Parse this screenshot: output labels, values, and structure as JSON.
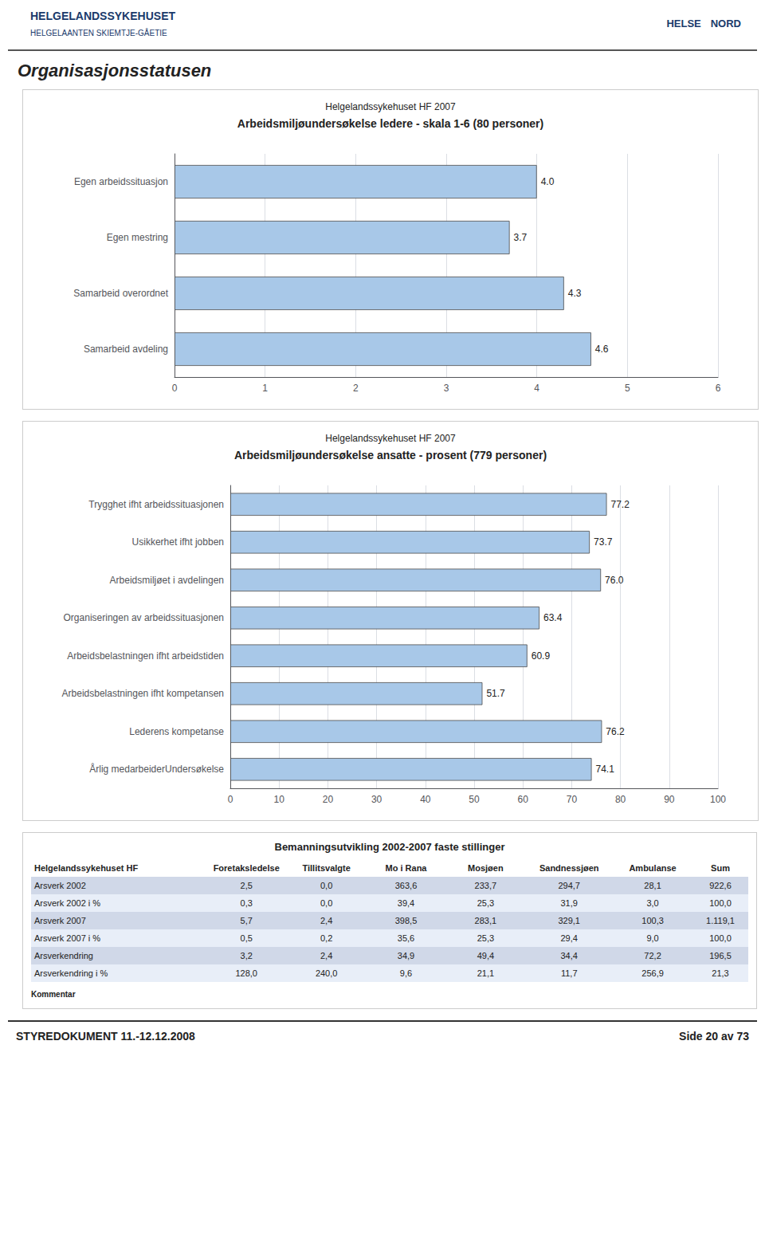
{
  "page": {
    "header_left": [
      "HELGELANDSSYKEHUSET",
      "HELGELAANTEN SKIEMTJE-GÅETIE"
    ],
    "header_right": [
      "HELSE",
      "NORD"
    ],
    "title": "Organisasjonsstatusen",
    "footer_left": "STYREDOKUMENT 11.-12.12.2008",
    "footer_right": "Side 20 av 73"
  },
  "chart_data": [
    {
      "type": "bar",
      "orientation": "horizontal",
      "title": "Helgelandssykehuset HF 2007",
      "subtitle": "Arbeidsmiljøundersøkelse ledere - skala 1-6 (80 personer)",
      "categories": [
        "Samarbeid avdeling",
        "Samarbeid overordnet",
        "Egen mestring",
        "Egen arbeidssituasjon"
      ],
      "values": [
        4.6,
        4.3,
        3.7,
        4.0
      ],
      "value_labels": [
        "4.6",
        "4.3",
        "3.7",
        "4.0"
      ],
      "data_labels": true,
      "color": "#a8c8e8",
      "xlim": [
        0,
        6
      ],
      "xticks": [
        0,
        1,
        2,
        3,
        4,
        5,
        6
      ],
      "grid": true
    },
    {
      "type": "bar",
      "orientation": "horizontal",
      "title": "Helgelandssykehuset HF 2007",
      "subtitle": "Arbeidsmiljøundersøkelse ansatte - prosent (779 personer)",
      "categories": [
        "Årlig medarbeiderUndersøkelse",
        "Lederens kompetanse",
        "Arbeidsbelastningen ifht kompetansen",
        "Arbeidsbelastningen ifht arbeidstiden",
        "Organiseringen av arbeidssituasjonen",
        "Arbeidsmiljøet i avdelingen",
        "Usikkerhet ifht jobben",
        "Trygghet ifht arbeidssituasjonen"
      ],
      "values": [
        74.1,
        76.2,
        51.7,
        60.9,
        63.4,
        76.0,
        73.7,
        77.2
      ],
      "value_labels": [
        "74.1",
        "76.2",
        "51.7",
        "60.9",
        "63.4",
        "76.0",
        "73.7",
        "77.2"
      ],
      "data_labels": true,
      "color": "#a8c8e8",
      "xlim": [
        0,
        100
      ],
      "xticks": [
        0,
        10,
        20,
        30,
        40,
        50,
        60,
        70,
        80,
        90,
        100
      ],
      "grid": true
    }
  ],
  "table": {
    "title": "Bemanningsutvikling 2002-2007 faste stillinger",
    "columns": [
      "Helgelandssykehuset HF",
      "Foretaksledelse",
      "Tillitsvalgte",
      "Mo i Rana",
      "Mosjøen",
      "Sandnessjøen",
      "Ambulanse",
      "Sum"
    ],
    "rows": [
      [
        "Arsverk 2002",
        "2,5",
        "0,0",
        "363,6",
        "233,7",
        "294,7",
        "28,1",
        "922,6"
      ],
      [
        "Arsverk 2002 i %",
        "0,3",
        "0,0",
        "39,4",
        "25,3",
        "31,9",
        "3,0",
        "100,0"
      ],
      [
        "Arsverk 2007",
        "5,7",
        "2,4",
        "398,5",
        "283,1",
        "329,1",
        "100,3",
        "1.119,1"
      ],
      [
        "Arsverk 2007 i %",
        "0,5",
        "0,2",
        "35,6",
        "25,3",
        "29,4",
        "9,0",
        "100,0"
      ],
      [
        "Arsverkendring",
        "3,2",
        "2,4",
        "34,9",
        "49,4",
        "34,4",
        "72,2",
        "196,5"
      ],
      [
        "Arsverkendring i %",
        "128,0",
        "240,0",
        "9,6",
        "21,1",
        "11,7",
        "256,9",
        "21,3"
      ]
    ],
    "comment": "Kommentar"
  }
}
